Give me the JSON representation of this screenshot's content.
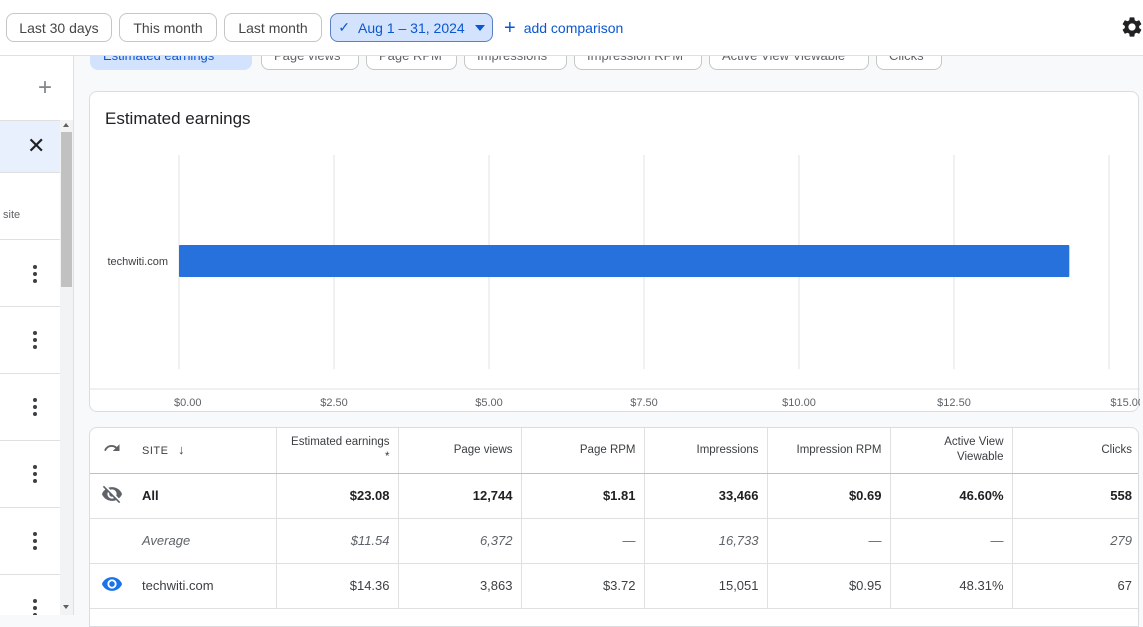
{
  "date_chips": [
    {
      "label": "Last 30 days",
      "selected": false
    },
    {
      "label": "This month",
      "selected": false
    },
    {
      "label": "Last month",
      "selected": false
    },
    {
      "label": "Aug 1 – 31, 2024",
      "selected": true
    }
  ],
  "add_comparison": "add comparison",
  "metric_tabs": [
    "Estimated earnings",
    "Page views",
    "Page RPM",
    "Impressions",
    "Impression RPM",
    "Active View Viewable",
    "Clicks"
  ],
  "left_panel": {
    "site_label": "site"
  },
  "chart_data": {
    "type": "bar",
    "orientation": "horizontal",
    "title": "Estimated earnings",
    "categories": [
      "techwiti.com"
    ],
    "values": [
      14.36
    ],
    "xlim": [
      0,
      15
    ],
    "x_ticks": [
      "$0.00",
      "$2.50",
      "$5.00",
      "$7.50",
      "$10.00",
      "$12.50",
      "$15.00"
    ],
    "tick_values": [
      0,
      2.5,
      5,
      7.5,
      10,
      12.5,
      15
    ],
    "grid": true,
    "bar_color": "#2771dc"
  },
  "table": {
    "site_header": "SITE",
    "headers": [
      "Estimated earnings *",
      "Page views",
      "Page RPM",
      "Impressions",
      "Impression RPM",
      "Active View Viewable",
      "Clicks"
    ],
    "rows": [
      {
        "type": "all",
        "site": "All",
        "values": [
          "$23.08",
          "12,744",
          "$1.81",
          "33,466",
          "$0.69",
          "46.60%",
          "558"
        ]
      },
      {
        "type": "avg",
        "site": "Average",
        "values": [
          "$11.54",
          "6,372",
          "—",
          "16,733",
          "—",
          "—",
          "279"
        ]
      },
      {
        "type": "site",
        "site": "techwiti.com",
        "values": [
          "$14.36",
          "3,863",
          "$3.72",
          "15,051",
          "$0.95",
          "48.31%",
          "67"
        ]
      }
    ]
  }
}
